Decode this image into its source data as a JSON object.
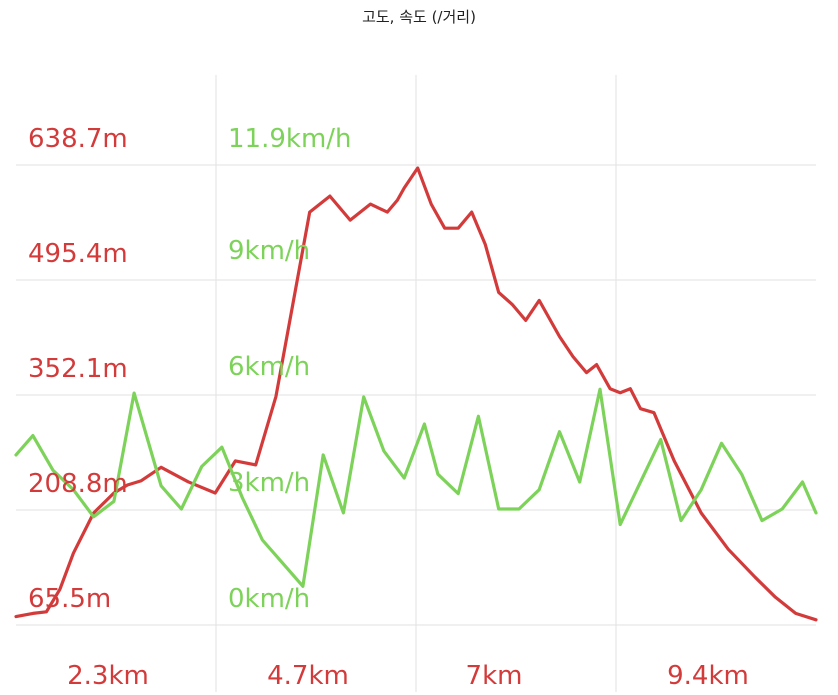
{
  "chart_data": {
    "type": "line",
    "title": "고도, 속도 (/거리)",
    "xlabel": "",
    "ylabel": "",
    "grid": true,
    "legend": "none",
    "x_unit": "km",
    "x_ticks": [
      "2.3km",
      "4.7km",
      "7km",
      "9.4km"
    ],
    "x_tick_values": [
      2.3,
      4.7,
      7.0,
      9.4
    ],
    "xlim": [
      0.35,
      12.2
    ],
    "y_axes": [
      {
        "name": "elevation",
        "unit": "m",
        "color": "#d33b3b",
        "ticks": [
          "65.5m",
          "208.8m",
          "352.1m",
          "495.4m",
          "638.7m"
        ],
        "tick_values": [
          65.5,
          208.8,
          352.1,
          495.4,
          638.7
        ],
        "ylim": [
          65.5,
          638.7
        ]
      },
      {
        "name": "speed",
        "unit": "km/h",
        "color": "#7dd35a",
        "ticks": [
          "0km/h",
          "3km/h",
          "6km/h",
          "9km/h",
          "11.9km/h"
        ],
        "tick_values": [
          0,
          3,
          6,
          9,
          11.9
        ],
        "ylim": [
          0,
          11.9
        ]
      }
    ],
    "series": [
      {
        "axis": "elevation",
        "color": "#d33b3b",
        "x": [
          0.35,
          0.6,
          0.8,
          1.0,
          1.2,
          1.5,
          1.8,
          2.0,
          2.2,
          2.5,
          2.9,
          3.3,
          3.6,
          3.9,
          4.2,
          4.45,
          4.7,
          5.0,
          5.3,
          5.6,
          5.85,
          6.0,
          6.1,
          6.3,
          6.5,
          6.7,
          6.9,
          7.1,
          7.3,
          7.5,
          7.7,
          7.9,
          8.1,
          8.4,
          8.6,
          8.8,
          8.95,
          9.15,
          9.3,
          9.45,
          9.6,
          9.8,
          10.1,
          10.5,
          10.9,
          11.3,
          11.6,
          11.9,
          12.2
        ],
        "values": [
          76,
          80,
          82,
          110,
          155,
          205,
          230,
          240,
          245,
          262,
          244,
          230,
          270,
          265,
          350,
          465,
          580,
          600,
          570,
          590,
          580,
          595,
          610,
          635,
          590,
          560,
          560,
          580,
          540,
          480,
          465,
          445,
          470,
          425,
          400,
          380,
          390,
          360,
          355,
          360,
          335,
          330,
          270,
          205,
          160,
          125,
          100,
          80,
          72
        ]
      },
      {
        "axis": "speed",
        "color": "#7dd35a",
        "x": [
          0.35,
          0.6,
          0.9,
          1.2,
          1.5,
          1.8,
          2.1,
          2.3,
          2.5,
          2.8,
          3.1,
          3.4,
          3.7,
          4.0,
          4.3,
          4.6,
          4.9,
          5.2,
          5.5,
          5.8,
          6.1,
          6.4,
          6.6,
          6.9,
          7.2,
          7.5,
          7.8,
          8.1,
          8.4,
          8.7,
          9.0,
          9.3,
          9.6,
          9.9,
          10.2,
          10.5,
          10.8,
          11.1,
          11.4,
          11.7,
          12.0,
          12.2
        ],
        "values": [
          4.4,
          4.9,
          4.0,
          3.5,
          2.8,
          3.2,
          6.0,
          4.8,
          3.6,
          3.0,
          4.1,
          4.6,
          3.3,
          2.2,
          1.6,
          1.0,
          4.4,
          2.9,
          5.9,
          4.5,
          3.8,
          5.2,
          3.9,
          3.4,
          5.4,
          3.0,
          3.0,
          3.5,
          5.0,
          3.7,
          6.1,
          2.6,
          3.7,
          4.8,
          2.7,
          3.5,
          4.7,
          3.9,
          2.7,
          3.0,
          3.7,
          2.9
        ]
      }
    ]
  }
}
